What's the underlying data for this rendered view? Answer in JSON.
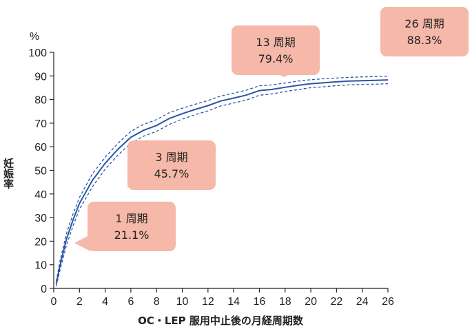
{
  "chart_data": {
    "type": "line",
    "title": "",
    "ylabel": "妊娠率",
    "yunit": "%",
    "xlabel": "OC・LEP 服用中止後の月経周期数",
    "xlim": [
      0,
      26
    ],
    "ylim": [
      0,
      100
    ],
    "xticks": [
      0,
      2,
      4,
      6,
      8,
      10,
      12,
      14,
      16,
      18,
      20,
      22,
      24,
      26
    ],
    "yticks": [
      0,
      10,
      20,
      30,
      40,
      50,
      60,
      70,
      80,
      90,
      100
    ],
    "grid": false,
    "legend": "none",
    "colors": {
      "line": "#2a55a4",
      "callout": "#f6b8a8"
    },
    "x": [
      0.2,
      0.5,
      1,
      1.5,
      2,
      3,
      4,
      5,
      6,
      7,
      8,
      9,
      10,
      11,
      12,
      13,
      14,
      15,
      16,
      17,
      18,
      19,
      20,
      21,
      22,
      23,
      24,
      25,
      26
    ],
    "series": [
      {
        "role": "estimate",
        "style": "solid",
        "values": [
          2,
          10,
          21.1,
          29,
          36,
          45.7,
          53,
          59,
          64,
          67,
          69,
          72,
          74,
          75.8,
          77.4,
          79.4,
          80.6,
          81.9,
          83.8,
          84.3,
          85.2,
          86,
          86.7,
          87.1,
          87.5,
          87.8,
          88,
          88.1,
          88.3
        ]
      },
      {
        "role": "upper",
        "style": "dashed",
        "values": [
          3,
          12,
          23.5,
          31.5,
          38.5,
          48.5,
          55.5,
          61.5,
          66.5,
          69.5,
          71.5,
          74.5,
          76.3,
          78,
          79.6,
          81.5,
          82.7,
          84,
          85.8,
          86.2,
          87,
          87.8,
          88.4,
          88.8,
          89.1,
          89.4,
          89.6,
          89.7,
          89.9
        ]
      },
      {
        "role": "lower",
        "style": "dashed",
        "values": [
          1,
          8,
          18.5,
          26.5,
          33.5,
          43,
          50.5,
          56.5,
          61.5,
          64.5,
          66.5,
          69.5,
          71.7,
          73.6,
          75.2,
          77.3,
          78.5,
          79.8,
          81.8,
          82.4,
          83.4,
          84.2,
          85,
          85.4,
          85.9,
          86.2,
          86.4,
          86.5,
          86.7
        ]
      }
    ],
    "annotations": [
      {
        "line1": "1 周期",
        "line2": "21.1%",
        "x": 1,
        "y": 21.1
      },
      {
        "line1": "3 周期",
        "line2": "45.7%",
        "x": 3,
        "y": 45.7
      },
      {
        "line1": "13 周期",
        "line2": "79.4%",
        "x": 13,
        "y": 79.4
      },
      {
        "line1": "26 周期",
        "line2": "88.3%",
        "x": 26,
        "y": 88.3
      }
    ]
  }
}
